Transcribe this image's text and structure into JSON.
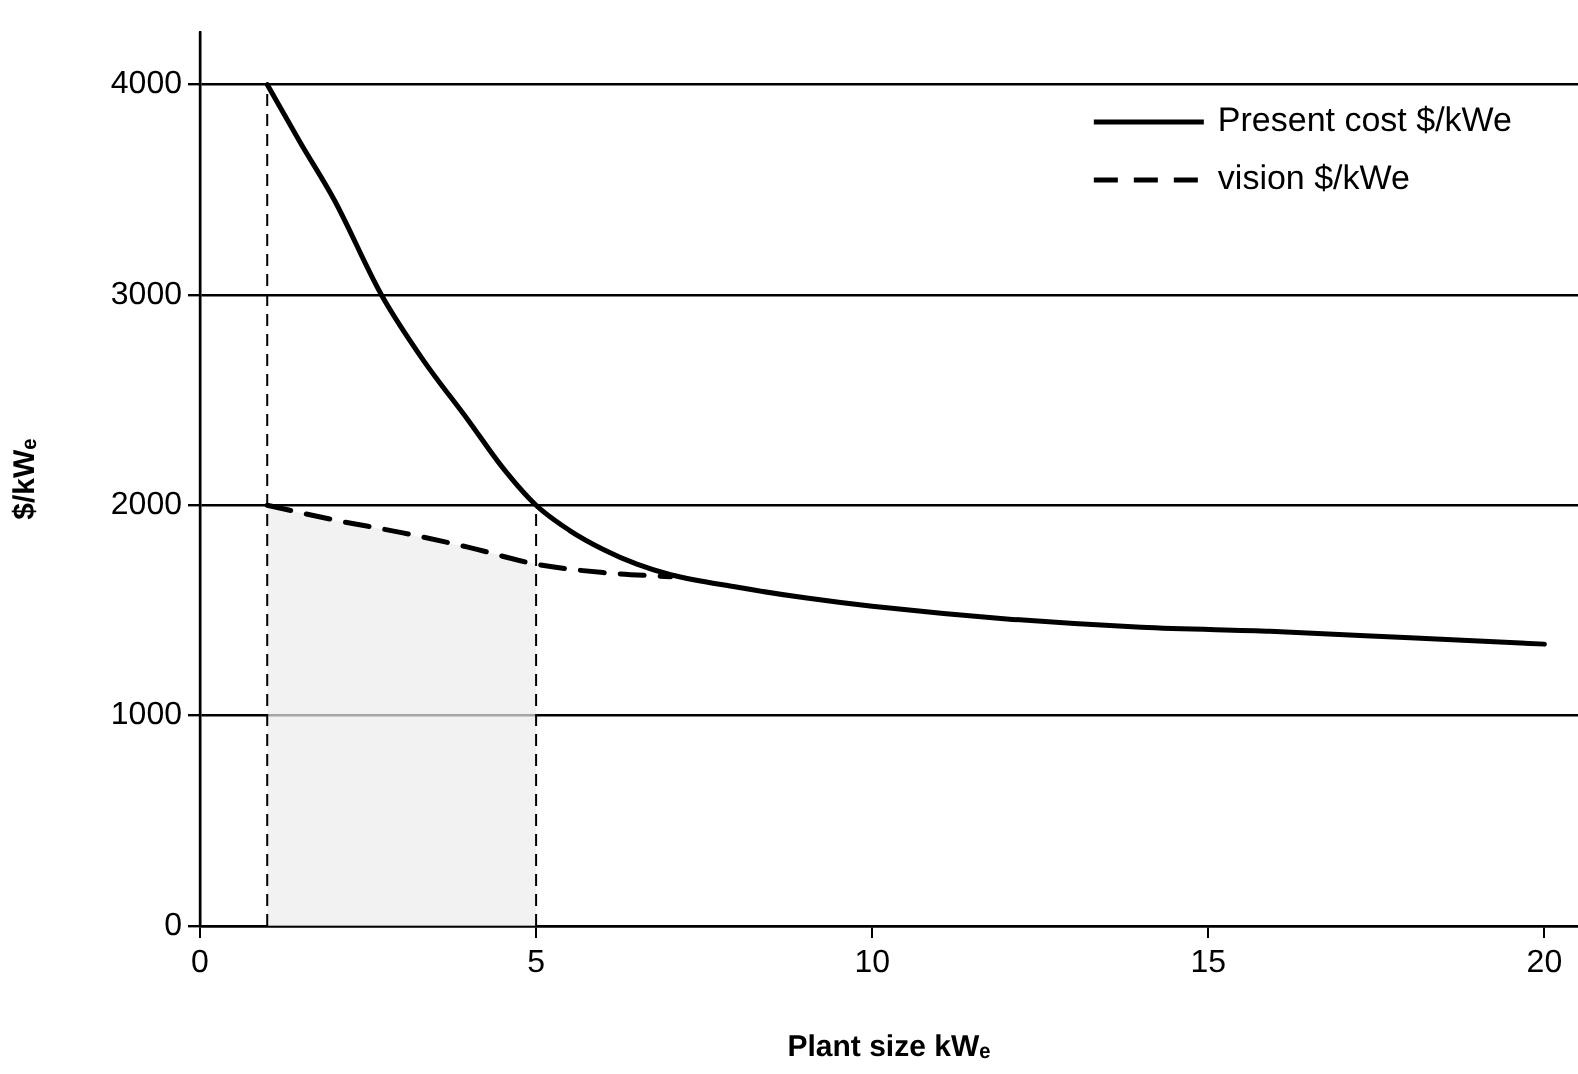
{
  "chart_data": {
    "type": "line",
    "xlabel": "Plant size kWₑ",
    "ylabel": "$/kWₑ",
    "xlim": [
      0,
      20.5
    ],
    "ylim": [
      0,
      4250
    ],
    "xticks": [
      0,
      5,
      10,
      15,
      20
    ],
    "yticks": [
      0,
      1000,
      2000,
      3000,
      4000
    ],
    "grid": "y",
    "legend": "top right",
    "marker": "none",
    "series": [
      {
        "name": "Present cost $/kWe",
        "color": "#000000",
        "line_style": "solid",
        "x": [
          1,
          1.5,
          2,
          2.7,
          3.3,
          4,
          4.5,
          5,
          5.5,
          6,
          6.5,
          7,
          8,
          9,
          10,
          12,
          14,
          16,
          18,
          20
        ],
        "values": [
          4000,
          3720,
          3450,
          3000,
          2700,
          2400,
          2180,
          2000,
          1880,
          1790,
          1720,
          1670,
          1610,
          1560,
          1520,
          1460,
          1420,
          1400,
          1370,
          1340
        ]
      },
      {
        "name": "vision $/kWe",
        "color": "#000000",
        "line_style": "dashed",
        "x": [
          1,
          2,
          3,
          4,
          5,
          6,
          7
        ],
        "values": [
          2000,
          1930,
          1870,
          1800,
          1720,
          1680,
          1660
        ]
      }
    ],
    "ref_lines": [
      {
        "axis": "x",
        "value": 1,
        "line_style": "dashed"
      },
      {
        "axis": "x",
        "value": 5,
        "line_style": "dashed"
      }
    ],
    "bands": [
      {
        "axis": "x",
        "from": 1,
        "to": 5,
        "color": "#ececec"
      }
    ]
  }
}
